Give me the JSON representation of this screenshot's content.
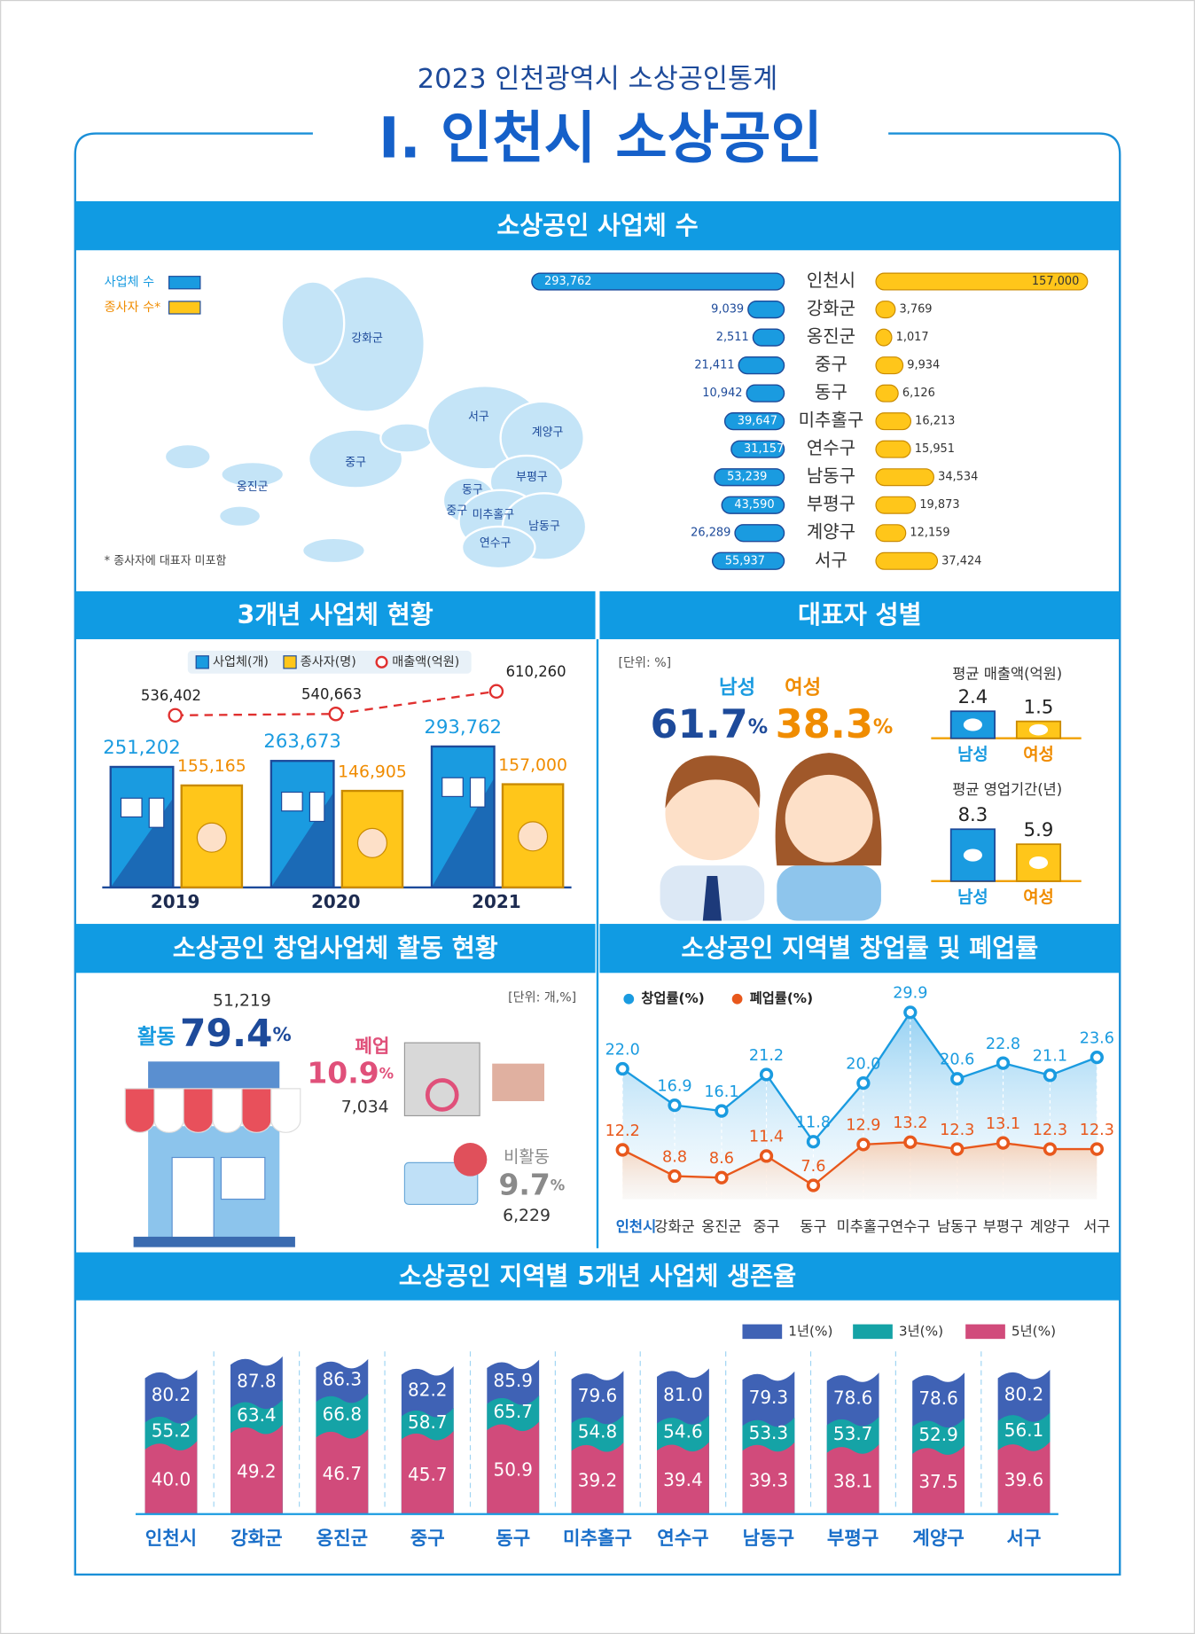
{
  "header": {
    "subtitle": "2023 인천광역시 소상공인통계",
    "title": "Ⅰ. 인천시 소상공인"
  },
  "chart_data": [
    {
      "type": "butterfly",
      "title": "소상공인 사업체 수",
      "categories": [
        "인천시",
        "강화군",
        "옹진군",
        "중구",
        "동구",
        "미추홀구",
        "연수구",
        "남동구",
        "부평구",
        "계양구",
        "서구"
      ],
      "series": [
        {
          "name": "사업체 수",
          "color": "#1a9be0",
          "values": [
            293762,
            9039,
            2511,
            21411,
            10942,
            39647,
            31157,
            53239,
            43590,
            26289,
            55937
          ],
          "value_labels": [
            "293,762",
            "9,039",
            "2,511",
            "21,411",
            "10,942",
            "39,647",
            "31,157",
            "53,239",
            "43,590",
            "26,289",
            "55,937"
          ]
        },
        {
          "name": "종사자 수*",
          "color": "#ffc61a",
          "values": [
            157000,
            3769,
            1017,
            9934,
            6126,
            16213,
            15951,
            34534,
            19873,
            12159,
            37424
          ],
          "value_labels": [
            "157,000",
            "3,769",
            "1,017",
            "9,934",
            "6,126",
            "16,213",
            "15,951",
            "34,534",
            "19,873",
            "12,159",
            "37,424"
          ]
        }
      ],
      "map_labels": [
        "강화군",
        "옹진군",
        "중구",
        "서구",
        "계양구",
        "부평구",
        "동구",
        "중구",
        "미추홀구",
        "남동구",
        "연수구"
      ],
      "note": "* 종사자에 대표자 미포함"
    },
    {
      "type": "combo",
      "title": "3개년 사업체 현황",
      "categories": [
        "2019",
        "2020",
        "2021"
      ],
      "series": [
        {
          "name": "사업체(개)",
          "color": "#1a9be0",
          "values": [
            251202,
            263673,
            293762
          ],
          "value_labels": [
            "251,202",
            "263,673",
            "293,762"
          ]
        },
        {
          "name": "종사자(명)",
          "color": "#ffc61a",
          "values": [
            155165,
            146905,
            157000
          ],
          "value_labels": [
            "155,165",
            "146,905",
            "157,000"
          ]
        },
        {
          "name": "매출액(억원)",
          "color": "#e0302f",
          "values": [
            536402,
            540663,
            610260
          ],
          "value_labels": [
            "536,402",
            "540,663",
            "610,260"
          ]
        }
      ]
    },
    {
      "type": "gender",
      "title": "대표자 성별",
      "unit_note": "[단위: %]",
      "unit": "%",
      "categories": [
        "남성",
        "여성"
      ],
      "colors": [
        "#1a9be0",
        "#f08c00"
      ],
      "share": [
        61.7,
        38.3
      ],
      "panels": [
        {
          "title": "평균 매출액(억원)",
          "values": [
            2.4,
            1.5
          ]
        },
        {
          "title": "평균 영업기간(년)",
          "values": [
            8.3,
            5.9
          ]
        }
      ]
    },
    {
      "type": "status",
      "title": "소상공인 창업사업체 활동 현황",
      "unit_note": "[단위: 개,%]",
      "unit": "%",
      "items": [
        {
          "name": "활동",
          "percent": 79.4,
          "count": 51219,
          "count_label": "51,219",
          "color": "#1a9be0"
        },
        {
          "name": "폐업",
          "percent": 10.9,
          "count": 7034,
          "count_label": "7,034",
          "color": "#e0507a"
        },
        {
          "name": "비활동",
          "percent": 9.7,
          "count": 6229,
          "count_label": "6,229",
          "color": "#8a8a8a"
        }
      ]
    },
    {
      "type": "line",
      "title": "소상공인 지역별 창업률 및 폐업률",
      "categories": [
        "인천시",
        "강화군",
        "옹진군",
        "중구",
        "동구",
        "미추홀구",
        "연수구",
        "남동구",
        "부평구",
        "계양구",
        "서구"
      ],
      "series": [
        {
          "name": "창업률(%)",
          "color": "#1a9be0",
          "values": [
            22.0,
            16.9,
            16.1,
            21.2,
            11.8,
            20.0,
            29.9,
            20.6,
            22.8,
            21.1,
            23.6
          ],
          "value_labels": [
            "22.0",
            "16.9",
            "16.1",
            "21.2",
            "11.8",
            "20.0",
            "29.9",
            "20.6",
            "22.8",
            "21.1",
            "23.6"
          ]
        },
        {
          "name": "폐업률(%)",
          "color": "#e8581c",
          "values": [
            12.2,
            8.8,
            8.6,
            11.4,
            7.6,
            12.9,
            13.2,
            12.3,
            13.1,
            12.3,
            12.3
          ]
        }
      ]
    },
    {
      "type": "survival",
      "title": "소상공인 지역별 5개년 사업체 생존율",
      "categories": [
        "인천시",
        "강화군",
        "옹진군",
        "중구",
        "동구",
        "미추홀구",
        "연수구",
        "남동구",
        "부평구",
        "계양구",
        "서구"
      ],
      "series": [
        {
          "name": "1년(%)",
          "color": "#3f62b5",
          "values": [
            80.2,
            87.8,
            86.3,
            82.2,
            85.9,
            79.6,
            81.0,
            79.3,
            78.6,
            78.6,
            80.2
          ],
          "value_labels": [
            "80.2",
            "87.8",
            "86.3",
            "82.2",
            "85.9",
            "79.6",
            "81.0",
            "79.3",
            "78.6",
            "78.6",
            "80.2"
          ]
        },
        {
          "name": "3년(%)",
          "color": "#15a3a6",
          "values": [
            55.2,
            63.4,
            66.8,
            58.7,
            65.7,
            54.8,
            54.6,
            53.3,
            53.7,
            52.9,
            56.1
          ]
        },
        {
          "name": "5년(%)",
          "color": "#d14b7b",
          "values": [
            40.0,
            49.2,
            46.7,
            45.7,
            50.9,
            39.2,
            39.4,
            39.3,
            38.1,
            37.5,
            39.6
          ],
          "value_labels": [
            "40.0",
            "49.2",
            "46.7",
            "45.7",
            "50.9",
            "39.2",
            "39.4",
            "39.3",
            "38.1",
            "37.5",
            "39.6"
          ]
        }
      ]
    }
  ]
}
